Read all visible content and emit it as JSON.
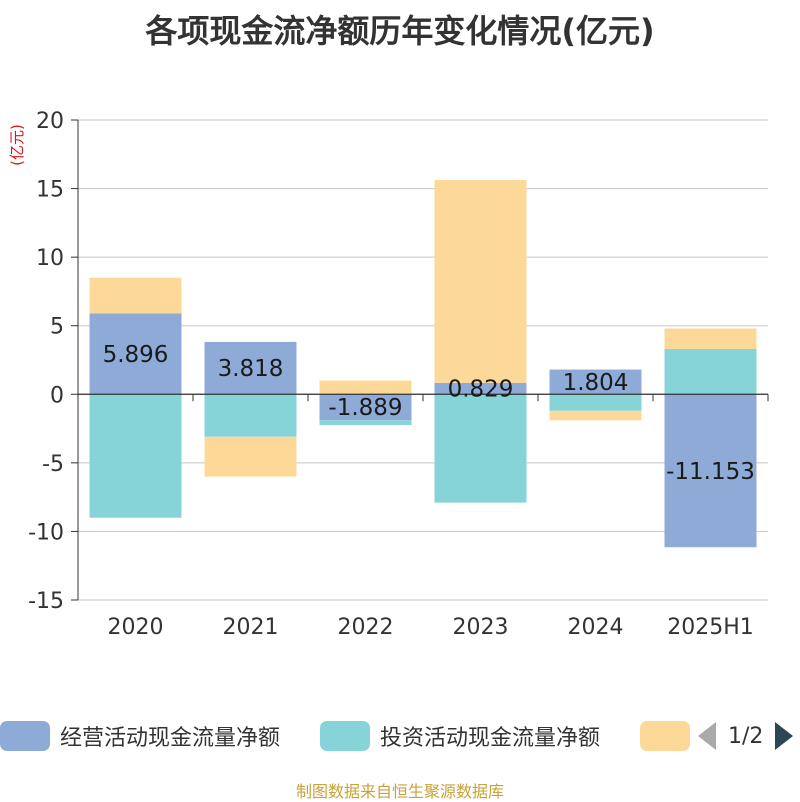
{
  "chart_data": {
    "type": "bar",
    "stacked": true,
    "title": "各项现金流净额历年变化情况(亿元)",
    "ylabel": "(亿元)",
    "ylim": [
      -15,
      20
    ],
    "yticks": [
      -15,
      -10,
      -5,
      0,
      5,
      10,
      15,
      20
    ],
    "grid": true,
    "legend_position": "bottom",
    "categories": [
      "2020",
      "2021",
      "2022",
      "2023",
      "2024",
      "2025H1"
    ],
    "series": [
      {
        "name": "经营活动现金流量净额",
        "color": "#8eabd8",
        "values": [
          5.896,
          3.818,
          -1.889,
          0.829,
          1.804,
          -11.153
        ],
        "labels": [
          "5.896",
          "3.818",
          "-1.889",
          "0.829",
          "1.804",
          "-11.153"
        ]
      },
      {
        "name": "投资活动现金流量净额",
        "color": "#86d4d8",
        "values": [
          -9.0,
          -3.1,
          -0.35,
          -7.9,
          -1.2,
          3.3
        ]
      },
      {
        "name": "",
        "color": "#fcd899",
        "values": [
          2.6,
          -2.9,
          1.0,
          14.8,
          -0.7,
          1.5
        ]
      }
    ]
  },
  "legend": {
    "items": [
      {
        "label": "经营活动现金流量净额",
        "color": "#8eabd8"
      },
      {
        "label": "投资活动现金流量净额",
        "color": "#86d4d8"
      },
      {
        "label": "",
        "color": "#fcd899"
      }
    ],
    "page": "1/2"
  },
  "source_note": "制图数据来自恒生聚源数据库"
}
